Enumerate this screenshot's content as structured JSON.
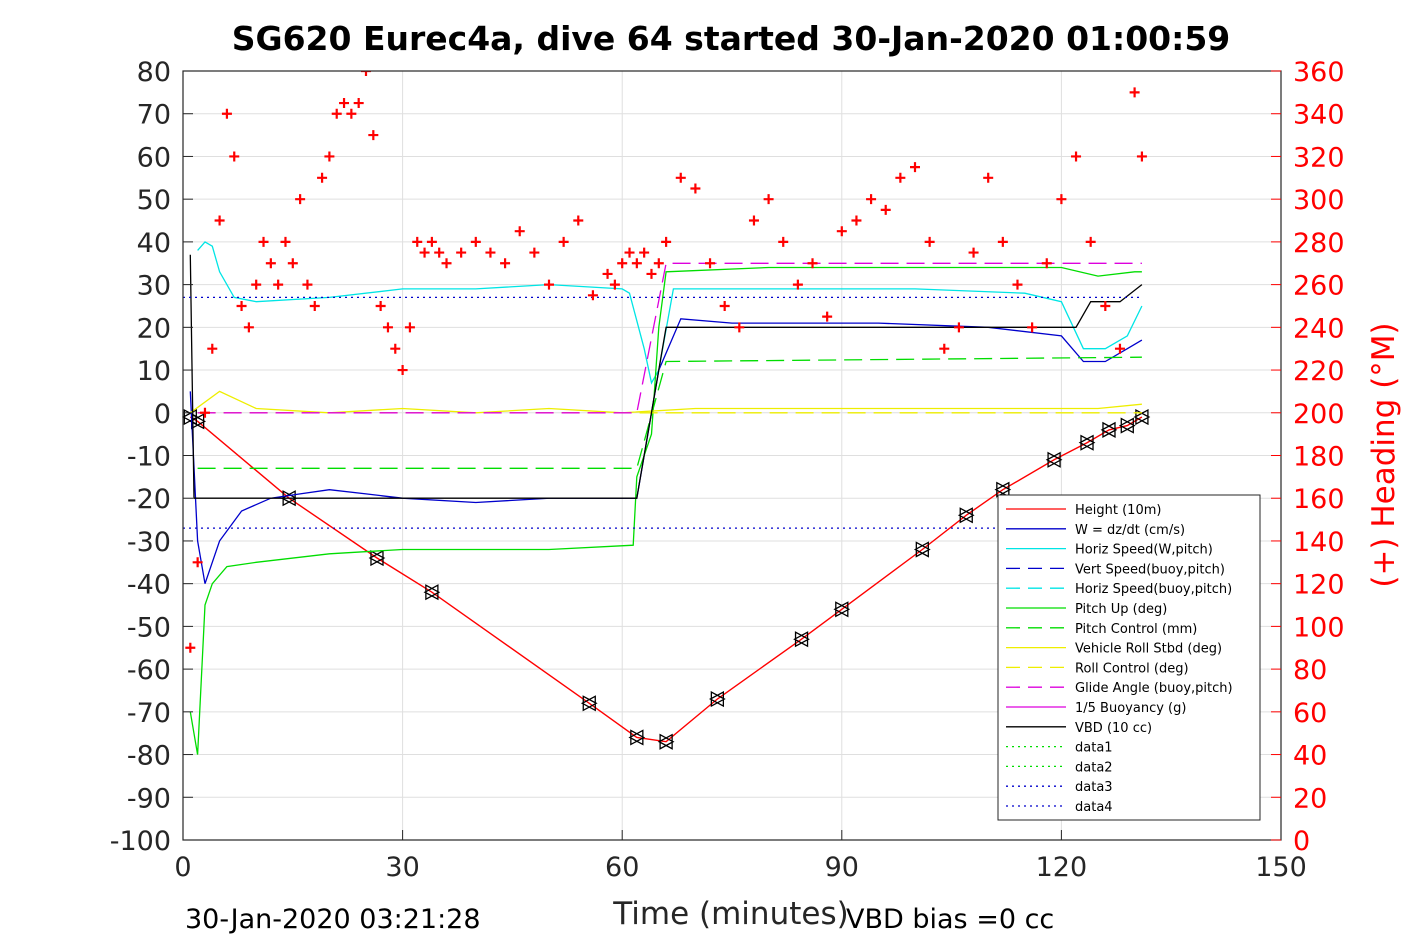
{
  "chart_data": {
    "type": "line",
    "title": "SG620 Eurec4a, dive 64 started 30-Jan-2020 01:00:59",
    "xlabel": "Time (minutes)",
    "ylabel_right": "(+) Heading (°M)",
    "xlim": [
      0,
      150
    ],
    "ylim": [
      -100,
      80
    ],
    "ylim_right": [
      0,
      360
    ],
    "x_ticks": [
      0,
      30,
      60,
      90,
      120,
      150
    ],
    "y_ticks": [
      -100,
      -90,
      -80,
      -70,
      -60,
      -50,
      -40,
      -30,
      -20,
      -10,
      0,
      10,
      20,
      30,
      40,
      50,
      60,
      70,
      80
    ],
    "y_ticks_right": [
      0,
      20,
      40,
      60,
      80,
      100,
      120,
      140,
      160,
      180,
      200,
      220,
      240,
      260,
      280,
      300,
      320,
      340,
      360
    ],
    "grid": true,
    "legend_position": "bottom-right",
    "footer_left": "30-Jan-2020 03:21:28",
    "footer_right": "VBD bias =0 cc",
    "series": [
      {
        "name": "Height (10m)",
        "color": "#ff0000",
        "style": "solid",
        "x": [
          1,
          2,
          14.5,
          26.5,
          34,
          55.5,
          62,
          66,
          73,
          84.5,
          90,
          101,
          107,
          112,
          119,
          123.5,
          126.5,
          129,
          131
        ],
        "y": [
          -1,
          -2,
          -20,
          -34,
          -42,
          -68,
          -76,
          -77,
          -67,
          -53,
          -46,
          -32,
          -24,
          -18,
          -11,
          -7,
          -4,
          -3,
          -1
        ]
      },
      {
        "name": "W = dz/dt (cm/s)",
        "color": "#0000cc",
        "style": "solid",
        "x": [
          1,
          2,
          3,
          5,
          8,
          12,
          16,
          20,
          25,
          30,
          40,
          50,
          62,
          63,
          65,
          68,
          75,
          85,
          95,
          110,
          120,
          123,
          126,
          129,
          131
        ],
        "y": [
          5,
          -30,
          -40,
          -30,
          -23,
          -20,
          -19,
          -18,
          -19,
          -20,
          -21,
          -20,
          -20,
          -10,
          10,
          22,
          21,
          21,
          21,
          20,
          18,
          12,
          12,
          15,
          17
        ]
      },
      {
        "name": "Horiz Speed(W,pitch)",
        "color": "#00e5e5",
        "style": "solid",
        "x": [
          2,
          3,
          4,
          5,
          7,
          10,
          20,
          30,
          40,
          50,
          60,
          61,
          63,
          64,
          65,
          67,
          80,
          100,
          115,
          120,
          123,
          126,
          129,
          131
        ],
        "y": [
          38,
          40,
          39,
          33,
          27,
          26,
          27,
          29,
          29,
          30,
          29,
          28,
          15,
          7,
          10,
          29,
          29,
          29,
          28,
          26,
          15,
          15,
          18,
          25
        ]
      },
      {
        "name": "Vert Speed(buoy,pitch)",
        "color": "#0000cc",
        "style": "dashed",
        "x": [],
        "y": []
      },
      {
        "name": "Horiz Speed(buoy,pitch)",
        "color": "#00e5e5",
        "style": "dashed",
        "x": [],
        "y": []
      },
      {
        "name": "Pitch Up (deg)",
        "color": "#00dd00",
        "style": "solid",
        "x": [
          1,
          2,
          3,
          4,
          6,
          10,
          20,
          30,
          40,
          50,
          61.5,
          62,
          64,
          65,
          66,
          80,
          100,
          120,
          125,
          130,
          131
        ],
        "y": [
          -70,
          -80,
          -45,
          -40,
          -36,
          -35,
          -33,
          -32,
          -32,
          -32,
          -31,
          -15,
          -5,
          20,
          33,
          34,
          34,
          34,
          32,
          33,
          33
        ]
      },
      {
        "name": "Pitch Control (mm)",
        "color": "#00dd00",
        "style": "dashed",
        "x": [
          2,
          62,
          66,
          131
        ],
        "y": [
          -13,
          -13,
          12,
          13
        ]
      },
      {
        "name": "Vehicle Roll Stbd (deg)",
        "color": "#eeee00",
        "style": "solid",
        "x": [
          1,
          5,
          10,
          20,
          30,
          40,
          50,
          60,
          70,
          80,
          90,
          100,
          110,
          120,
          125,
          131
        ],
        "y": [
          0,
          5,
          1,
          0,
          1,
          0,
          1,
          0,
          1,
          1,
          1,
          1,
          1,
          1,
          1,
          2
        ]
      },
      {
        "name": "Roll Control (deg)",
        "color": "#eeee00",
        "style": "dashed",
        "x": [
          2,
          62,
          63,
          131
        ],
        "y": [
          0,
          0,
          0,
          0
        ]
      },
      {
        "name": "Glide Angle (buoy,pitch)",
        "color": "#dd00dd",
        "style": "dashed",
        "x": [
          2,
          62,
          66,
          131
        ],
        "y": [
          0,
          0,
          35,
          35
        ]
      },
      {
        "name": "1/5 Buoyancy (g)",
        "color": "#dd00dd",
        "style": "solid",
        "x": [],
        "y": []
      },
      {
        "name": "VBD (10 cc)",
        "color": "#000000",
        "style": "solid",
        "x": [
          1,
          1.5,
          2,
          62,
          66,
          122,
          124,
          128,
          131
        ],
        "y": [
          37,
          -20,
          -20,
          -20,
          20,
          20,
          26,
          26,
          30
        ]
      },
      {
        "name": "data1",
        "color": "#00dd00",
        "style": "dotted",
        "x": [],
        "y": []
      },
      {
        "name": "data2",
        "color": "#00dd00",
        "style": "dotted",
        "x": [],
        "y": []
      },
      {
        "name": "data3",
        "color": "#0000cc",
        "style": "dotted",
        "x": [
          0,
          131
        ],
        "y": [
          27,
          27
        ]
      },
      {
        "name": "data4",
        "color": "#0000cc",
        "style": "dotted",
        "x": [
          0,
          131
        ],
        "y": [
          -27,
          -27
        ]
      },
      {
        "name": "(+) Heading (°M)",
        "color": "#ff0000",
        "style": "markers",
        "axis": "right",
        "x": [
          1,
          2,
          3,
          4,
          5,
          6,
          7,
          8,
          9,
          10,
          11,
          12,
          13,
          14,
          15,
          16,
          17,
          18,
          19,
          20,
          21,
          22,
          23,
          24,
          25,
          26,
          27,
          28,
          29,
          30,
          31,
          32,
          33,
          34,
          35,
          36,
          38,
          40,
          42,
          44,
          46,
          48,
          50,
          52,
          54,
          56,
          58,
          59,
          60,
          61,
          62,
          63,
          64,
          65,
          66,
          68,
          70,
          72,
          74,
          76,
          78,
          80,
          82,
          84,
          86,
          88,
          90,
          92,
          94,
          96,
          98,
          100,
          102,
          104,
          106,
          108,
          110,
          112,
          114,
          116,
          118,
          120,
          122,
          124,
          126,
          128,
          130,
          131
        ],
        "y": [
          90,
          130,
          200,
          230,
          290,
          340,
          320,
          250,
          240,
          260,
          280,
          270,
          260,
          280,
          270,
          300,
          260,
          250,
          310,
          320,
          340,
          345,
          340,
          345,
          360,
          330,
          250,
          240,
          230,
          220,
          240,
          280,
          275,
          280,
          275,
          270,
          275,
          280,
          275,
          270,
          285,
          275,
          260,
          280,
          290,
          255,
          265,
          260,
          270,
          275,
          270,
          275,
          265,
          270,
          280,
          310,
          305,
          270,
          250,
          240,
          290,
          300,
          280,
          260,
          270,
          245,
          285,
          290,
          300,
          295,
          310,
          315,
          280,
          230,
          240,
          275,
          310,
          280,
          260,
          240,
          270,
          300,
          320,
          280,
          250,
          230,
          350,
          320
        ]
      }
    ]
  }
}
